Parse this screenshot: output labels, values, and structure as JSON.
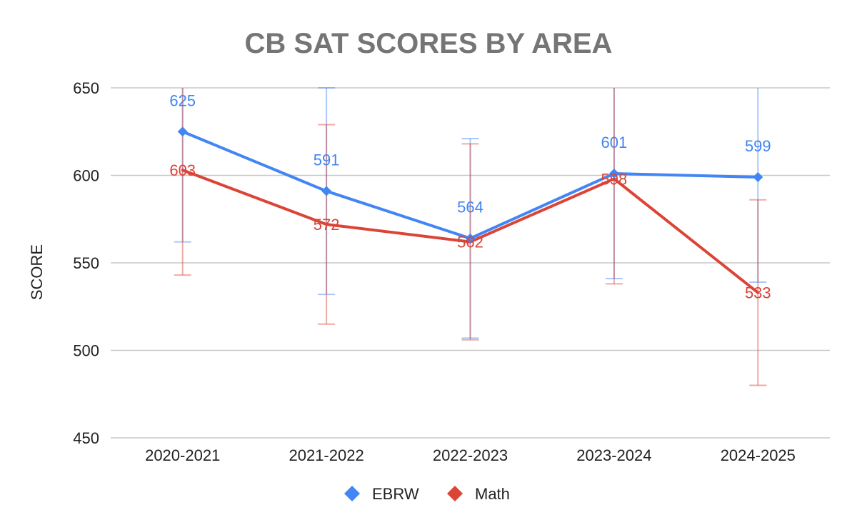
{
  "chart_data": {
    "type": "line",
    "title": "CB SAT SCORES BY AREA",
    "xlabel": "",
    "ylabel": "SCORE",
    "ylim": [
      450,
      650
    ],
    "yticks": [
      450,
      500,
      550,
      600,
      650
    ],
    "grid": true,
    "legend": "bottom",
    "categories": [
      "2020-2021",
      "2021-2022",
      "2022-2023",
      "2023-2024",
      "2024-2025"
    ],
    "series": [
      {
        "name": "EBRW",
        "color": "#4285f4",
        "values": [
          625,
          591,
          564,
          601,
          599
        ],
        "labels": [
          "625",
          "591",
          "564",
          "601",
          "599"
        ],
        "error_low": [
          562,
          532,
          507,
          541,
          539
        ],
        "error_high": [
          688,
          650,
          621,
          661,
          659
        ]
      },
      {
        "name": "Math",
        "color": "#db4437",
        "values": [
          603,
          572,
          562,
          598,
          533
        ],
        "labels": [
          "603",
          "572",
          "562",
          "598",
          "533"
        ],
        "error_low": [
          543,
          515,
          506,
          538,
          480
        ],
        "error_high": [
          663,
          629,
          618,
          658,
          586
        ]
      }
    ]
  }
}
